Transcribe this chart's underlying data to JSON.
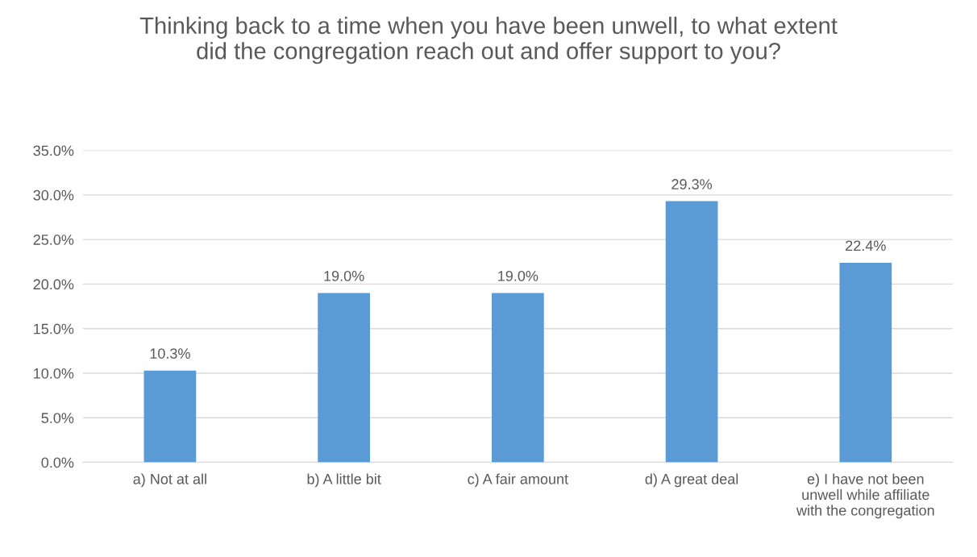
{
  "chart_data": {
    "type": "bar",
    "title": "Thinking back to a time when you have been unwell, to what extent did the congregation reach out and offer support to you?",
    "categories": [
      "a) Not at all",
      "b) A little bit",
      "c) A fair amount",
      "d) A great deal",
      "e) I have not been\nunwell while affiliate\nwith the congregation"
    ],
    "values": [
      10.3,
      19.0,
      19.0,
      29.3,
      22.4
    ],
    "value_labels": [
      "10.3%",
      "19.0%",
      "19.0%",
      "29.3%",
      "22.4%"
    ],
    "color": "#5b9bd5",
    "ylim": [
      0,
      35
    ],
    "yticks": [
      {
        "value": 0,
        "label": "0.0%"
      },
      {
        "value": 5,
        "label": "5.0%"
      },
      {
        "value": 10,
        "label": "10.0%"
      },
      {
        "value": 15,
        "label": "15.0%"
      },
      {
        "value": 20,
        "label": "20.0%"
      },
      {
        "value": 25,
        "label": "25.0%"
      },
      {
        "value": 30,
        "label": "30.0%"
      },
      {
        "value": 35,
        "label": "35.0%"
      }
    ],
    "grid": "y",
    "legend": false
  }
}
